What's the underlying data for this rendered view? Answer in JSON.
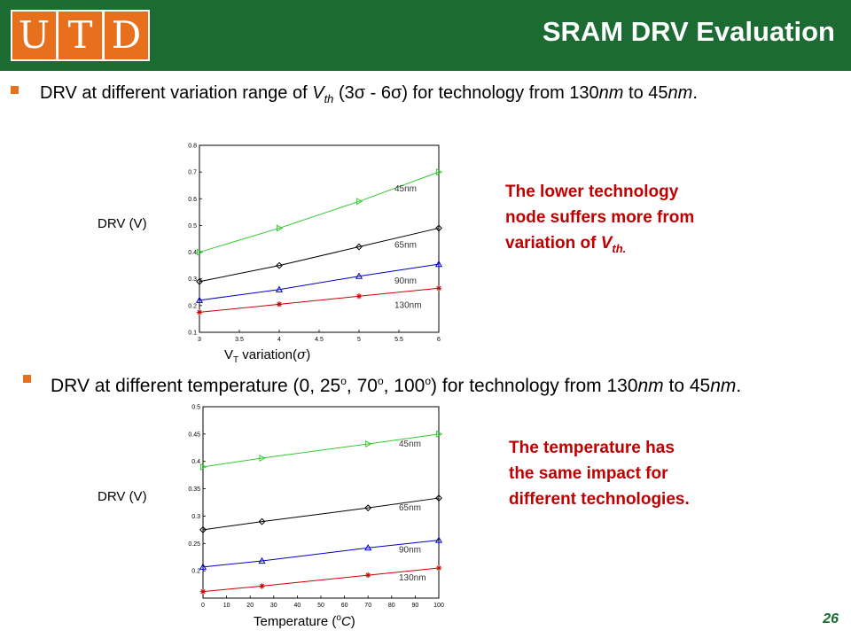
{
  "header": {
    "logo_letters": [
      "U",
      "T",
      "D"
    ],
    "title": "SRAM DRV Evaluation",
    "color": "#1b6b33",
    "logo_color": "#e86f1c"
  },
  "bullets": [
    {
      "t1": "DRV at different variation range of ",
      "v": "V",
      "sub": "th",
      "t2": " (3σ - 6σ) for technology from 130",
      "nm": "nm",
      "t3": " to 45",
      "nm2": "nm",
      "t4": "."
    },
    {
      "t1": "DRV at different temperature (0, 25",
      "deg1": "o",
      "t2": ", 70",
      "deg2": "o",
      "t3": ", 100",
      "deg3": "o",
      "t4": ") for technology from 130",
      "nm": "nm",
      "t5": " to 45",
      "nm2": "nm",
      "t6": "."
    }
  ],
  "chart1_labels": {
    "ylabel": "DRV (V)",
    "x_pre": "V",
    "x_sub": "T",
    "x_post": " variation(",
    "x_sigma": "σ",
    "x_close": ")"
  },
  "chart2_labels": {
    "ylabel": "DRV (V)",
    "x_pre": "Temperature (",
    "x_deg": "o",
    "x_unit": "C",
    "x_close": ")"
  },
  "notes": {
    "note1_line1": "The lower technology",
    "note1_line2": "node suffers more from",
    "note1_line3": "variation of ",
    "note1_v": "V",
    "note1_sub": "th.",
    "note2_line1": "The temperature has",
    "note2_line2": "the same impact for",
    "note2_line3": "different technologies."
  },
  "page_number": "26",
  "chart_data": [
    {
      "type": "line",
      "x": [
        3,
        4,
        5,
        6
      ],
      "xlim": [
        3,
        6
      ],
      "ylim": [
        0.1,
        0.8
      ],
      "xticks": [
        "3",
        "3.5",
        "4",
        "4.5",
        "5",
        "5.5",
        "6"
      ],
      "yticks": [
        "0.1",
        "0.2",
        "0.3",
        "0.4",
        "0.5",
        "0.6",
        "0.7",
        "0.8"
      ],
      "grid": false,
      "series": [
        {
          "name": "45nm",
          "values": [
            0.4,
            0.49,
            0.59,
            0.7
          ],
          "color": "#33cc33",
          "marker": "triangle-right"
        },
        {
          "name": "65nm",
          "values": [
            0.29,
            0.35,
            0.42,
            0.49
          ],
          "color": "#000000",
          "marker": "diamond"
        },
        {
          "name": "90nm",
          "values": [
            0.22,
            0.26,
            0.31,
            0.355
          ],
          "color": "#0000cc",
          "marker": "triangle-up"
        },
        {
          "name": "130nm",
          "values": [
            0.175,
            0.205,
            0.235,
            0.265
          ],
          "color": "#cc0000",
          "marker": "star"
        }
      ]
    },
    {
      "type": "line",
      "x": [
        0,
        25,
        70,
        100
      ],
      "xlim": [
        0,
        100
      ],
      "ylim": [
        0.15,
        0.5
      ],
      "xticks": [
        "0",
        "10",
        "20",
        "30",
        "40",
        "50",
        "60",
        "70",
        "80",
        "90",
        "100"
      ],
      "yticks": [
        "0.2",
        "0.25",
        "0.3",
        "0.35",
        "0.4",
        "0.45",
        "0.5"
      ],
      "grid": false,
      "series": [
        {
          "name": "45nm",
          "values": [
            0.39,
            0.406,
            0.432,
            0.45
          ],
          "color": "#33cc33",
          "marker": "triangle-right"
        },
        {
          "name": "65nm",
          "values": [
            0.275,
            0.29,
            0.315,
            0.333
          ],
          "color": "#000000",
          "marker": "diamond"
        },
        {
          "name": "90nm",
          "values": [
            0.207,
            0.218,
            0.242,
            0.256
          ],
          "color": "#0000cc",
          "marker": "triangle-up"
        },
        {
          "name": "130nm",
          "values": [
            0.162,
            0.172,
            0.192,
            0.205
          ],
          "color": "#cc0000",
          "marker": "star"
        }
      ]
    }
  ]
}
